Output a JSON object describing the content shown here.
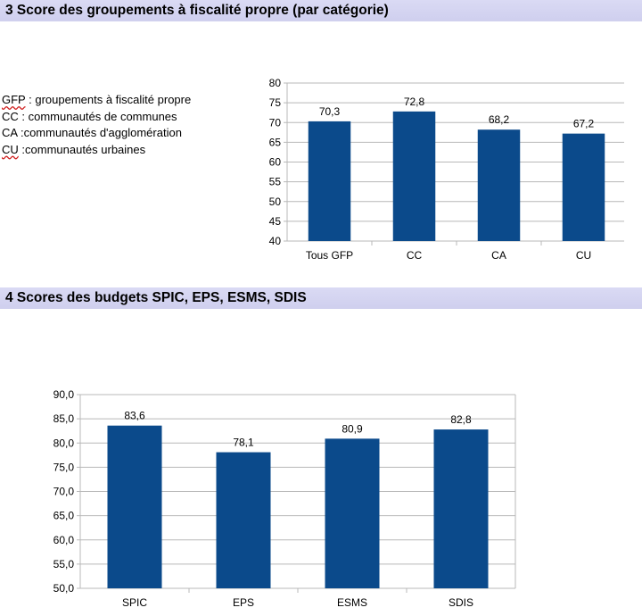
{
  "sections": {
    "s3_title": "3 Score des groupements à fiscalité propre (par catégorie)",
    "s4_title": "4 Scores des budgets SPIC, EPS, ESMS, SDIS"
  },
  "legend": [
    {
      "abbr": "GFP",
      "text": " : groupements à fiscalité propre"
    },
    {
      "abbr": "CC",
      "text": " : communautés de communes"
    },
    {
      "abbr": "CA",
      "text": " :communautés d'agglomération"
    },
    {
      "abbr": "CU",
      "text": " :communautés urbaines"
    }
  ],
  "colors": {
    "bar": "#0b4a8b",
    "grid": "#b8b8b8",
    "header": "#d4d4f0"
  },
  "chart_data": [
    {
      "type": "bar",
      "title": "",
      "xlabel": "",
      "ylabel": "",
      "categories": [
        "Tous GFP",
        "CC",
        "CA",
        "CU"
      ],
      "values": [
        70.3,
        72.8,
        68.2,
        67.2
      ],
      "value_labels": [
        "70,3",
        "72,8",
        "68,2",
        "67,2"
      ],
      "ylim": [
        40,
        80
      ],
      "yticks": [
        "40",
        "45",
        "50",
        "55",
        "60",
        "65",
        "70",
        "75",
        "80"
      ],
      "grid": true,
      "legend": "none"
    },
    {
      "type": "bar",
      "title": "",
      "xlabel": "",
      "ylabel": "",
      "categories": [
        "SPIC",
        "EPS",
        "ESMS",
        "SDIS"
      ],
      "values": [
        83.6,
        78.1,
        80.9,
        82.8
      ],
      "value_labels": [
        "83,6",
        "78,1",
        "80,9",
        "82,8"
      ],
      "ylim": [
        50,
        90
      ],
      "yticks": [
        "50,0",
        "55,0",
        "60,0",
        "65,0",
        "70,0",
        "75,0",
        "80,0",
        "85,0",
        "90,0"
      ],
      "grid": true,
      "legend": "none"
    }
  ]
}
